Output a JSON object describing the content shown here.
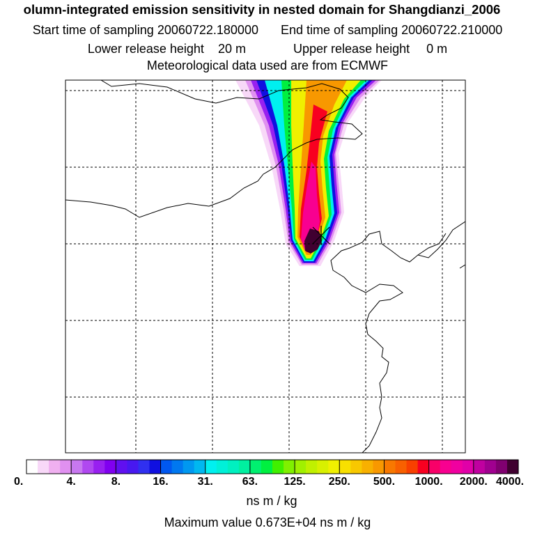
{
  "title": {
    "line1": "olumn-integrated emission sensitivity in nested domain for Shangdianzi_2006",
    "start_label": "Start time of sampling",
    "start_value": "20060722.180000",
    "end_label": "End time of sampling",
    "end_value": "20060722.210000",
    "lower_label": "Lower release height",
    "lower_value": "20 m",
    "upper_label": "Upper release height",
    "upper_value": "0 m",
    "met_line": "Meteorological data used are from ECMWF"
  },
  "legend": {
    "ticks": [
      "0.",
      "4.",
      "8.",
      "16.",
      "31.",
      "63.",
      "125.",
      "250.",
      "500.",
      "1000.",
      "2000.",
      "4000."
    ],
    "colors": [
      "#ffffff",
      "#f8d8f8",
      "#f0b0f0",
      "#e090f0",
      "#c878f0",
      "#b048f0",
      "#9820f0",
      "#8000f0",
      "#6010f0",
      "#4818f0",
      "#3030f0",
      "#1010e0",
      "#0058f0",
      "#0078f0",
      "#0098f0",
      "#00b8f0",
      "#00f0f0",
      "#00f0d8",
      "#00f0c0",
      "#00f0a0",
      "#00f070",
      "#00f040",
      "#40f000",
      "#80f000",
      "#a0f000",
      "#c0f000",
      "#d8f000",
      "#f0f000",
      "#f8e000",
      "#f8c800",
      "#f8b000",
      "#f89800",
      "#f87800",
      "#f86000",
      "#f84000",
      "#f80020",
      "#f80068",
      "#f80090",
      "#f000a0",
      "#e000a8",
      "#c000a0",
      "#a00090",
      "#800070",
      "#400030"
    ],
    "units": "ns m / kg",
    "max_label": "Maximum value",
    "max_value": "0.673E+04 ns m / kg"
  },
  "map": {
    "receptor": "Shangdianzi",
    "plume_colors": {
      "pale": "#f8d8f8",
      "lavender": "#e090f0",
      "purple": "#9820f0",
      "blue": "#1010e0",
      "cyan": "#00f0f0",
      "green": "#00f040",
      "yellow": "#f0f000",
      "orange": "#f89800",
      "red": "#f80020",
      "magenta": "#f80090",
      "dark": "#400030"
    }
  }
}
